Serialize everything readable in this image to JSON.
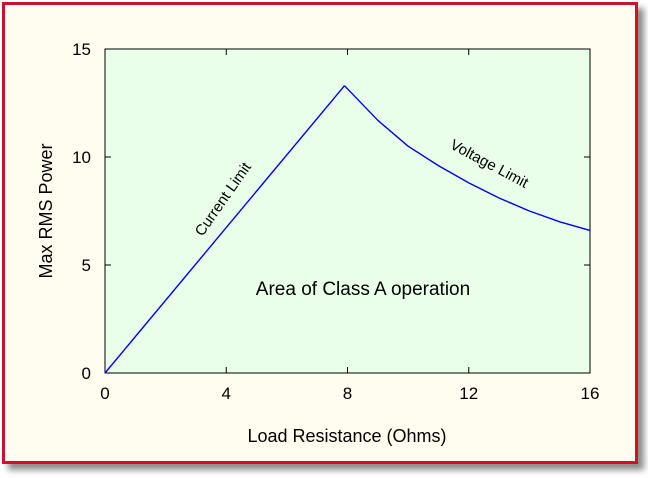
{
  "chart_data": {
    "type": "line",
    "xlabel": "Load Resistance (Ohms)",
    "ylabel": "Max RMS Power",
    "xlim": [
      0,
      16
    ],
    "ylim": [
      0,
      15
    ],
    "xticks": [
      0,
      4,
      8,
      12,
      16
    ],
    "yticks": [
      0,
      5,
      10,
      15
    ],
    "grid": false,
    "plot_background": "#eaffea",
    "line_color": "#0000ee",
    "series": [
      {
        "segment": "current-limit",
        "x": [
          0,
          7.9
        ],
        "y": [
          0,
          13.3
        ]
      },
      {
        "segment": "voltage-limit",
        "x": [
          7.9,
          9,
          10,
          11,
          12,
          13,
          14,
          15,
          16
        ],
        "y": [
          13.3,
          11.7,
          10.5,
          9.6,
          8.8,
          8.1,
          7.5,
          7.0,
          6.6
        ]
      }
    ],
    "annotations": {
      "current_limit": "Current Limit",
      "voltage_limit": "Voltage Limit",
      "region": "Area of Class A operation"
    }
  }
}
